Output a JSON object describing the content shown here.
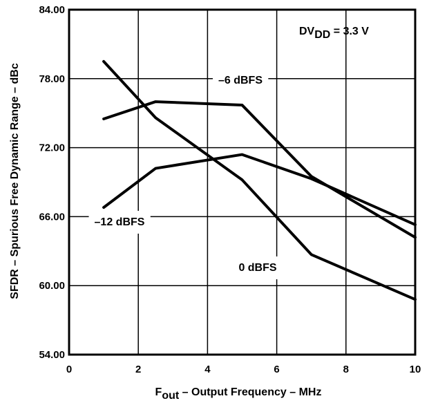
{
  "chart_data": {
    "type": "line",
    "xlabel_main": "F",
    "xlabel_sub": "out",
    "xlabel_rest": " – Output Frequency – MHz",
    "ylabel": "SFDR – Spurious Free Dynamic Range – dBc",
    "xlim": [
      0,
      10
    ],
    "ylim": [
      54,
      84
    ],
    "xticks": [
      0,
      2,
      4,
      6,
      8,
      10
    ],
    "xtick_labels": [
      "0",
      "2",
      "4",
      "6",
      "8",
      "10"
    ],
    "yticks": [
      54,
      60,
      66,
      72,
      78,
      84
    ],
    "ytick_labels": [
      "54.00",
      "60.00",
      "66.00",
      "72.00",
      "78.00",
      "84.00"
    ],
    "grid": true,
    "annotation": {
      "main": "DV",
      "sub": "DD",
      "rest": " = 3.3 V"
    },
    "series": [
      {
        "name": "0 dBFS",
        "x": [
          1,
          2.5,
          5,
          7,
          10
        ],
        "y": [
          79.5,
          74.6,
          69.2,
          62.7,
          58.8
        ]
      },
      {
        "name": "–6 dBFS",
        "x": [
          1,
          2.5,
          5,
          7,
          10
        ],
        "y": [
          74.5,
          76.0,
          75.7,
          69.5,
          64.2
        ]
      },
      {
        "name": "–12 dBFS",
        "x": [
          1,
          2.5,
          5,
          7,
          10
        ],
        "y": [
          66.8,
          70.2,
          71.4,
          69.3,
          65.3
        ]
      }
    ]
  }
}
